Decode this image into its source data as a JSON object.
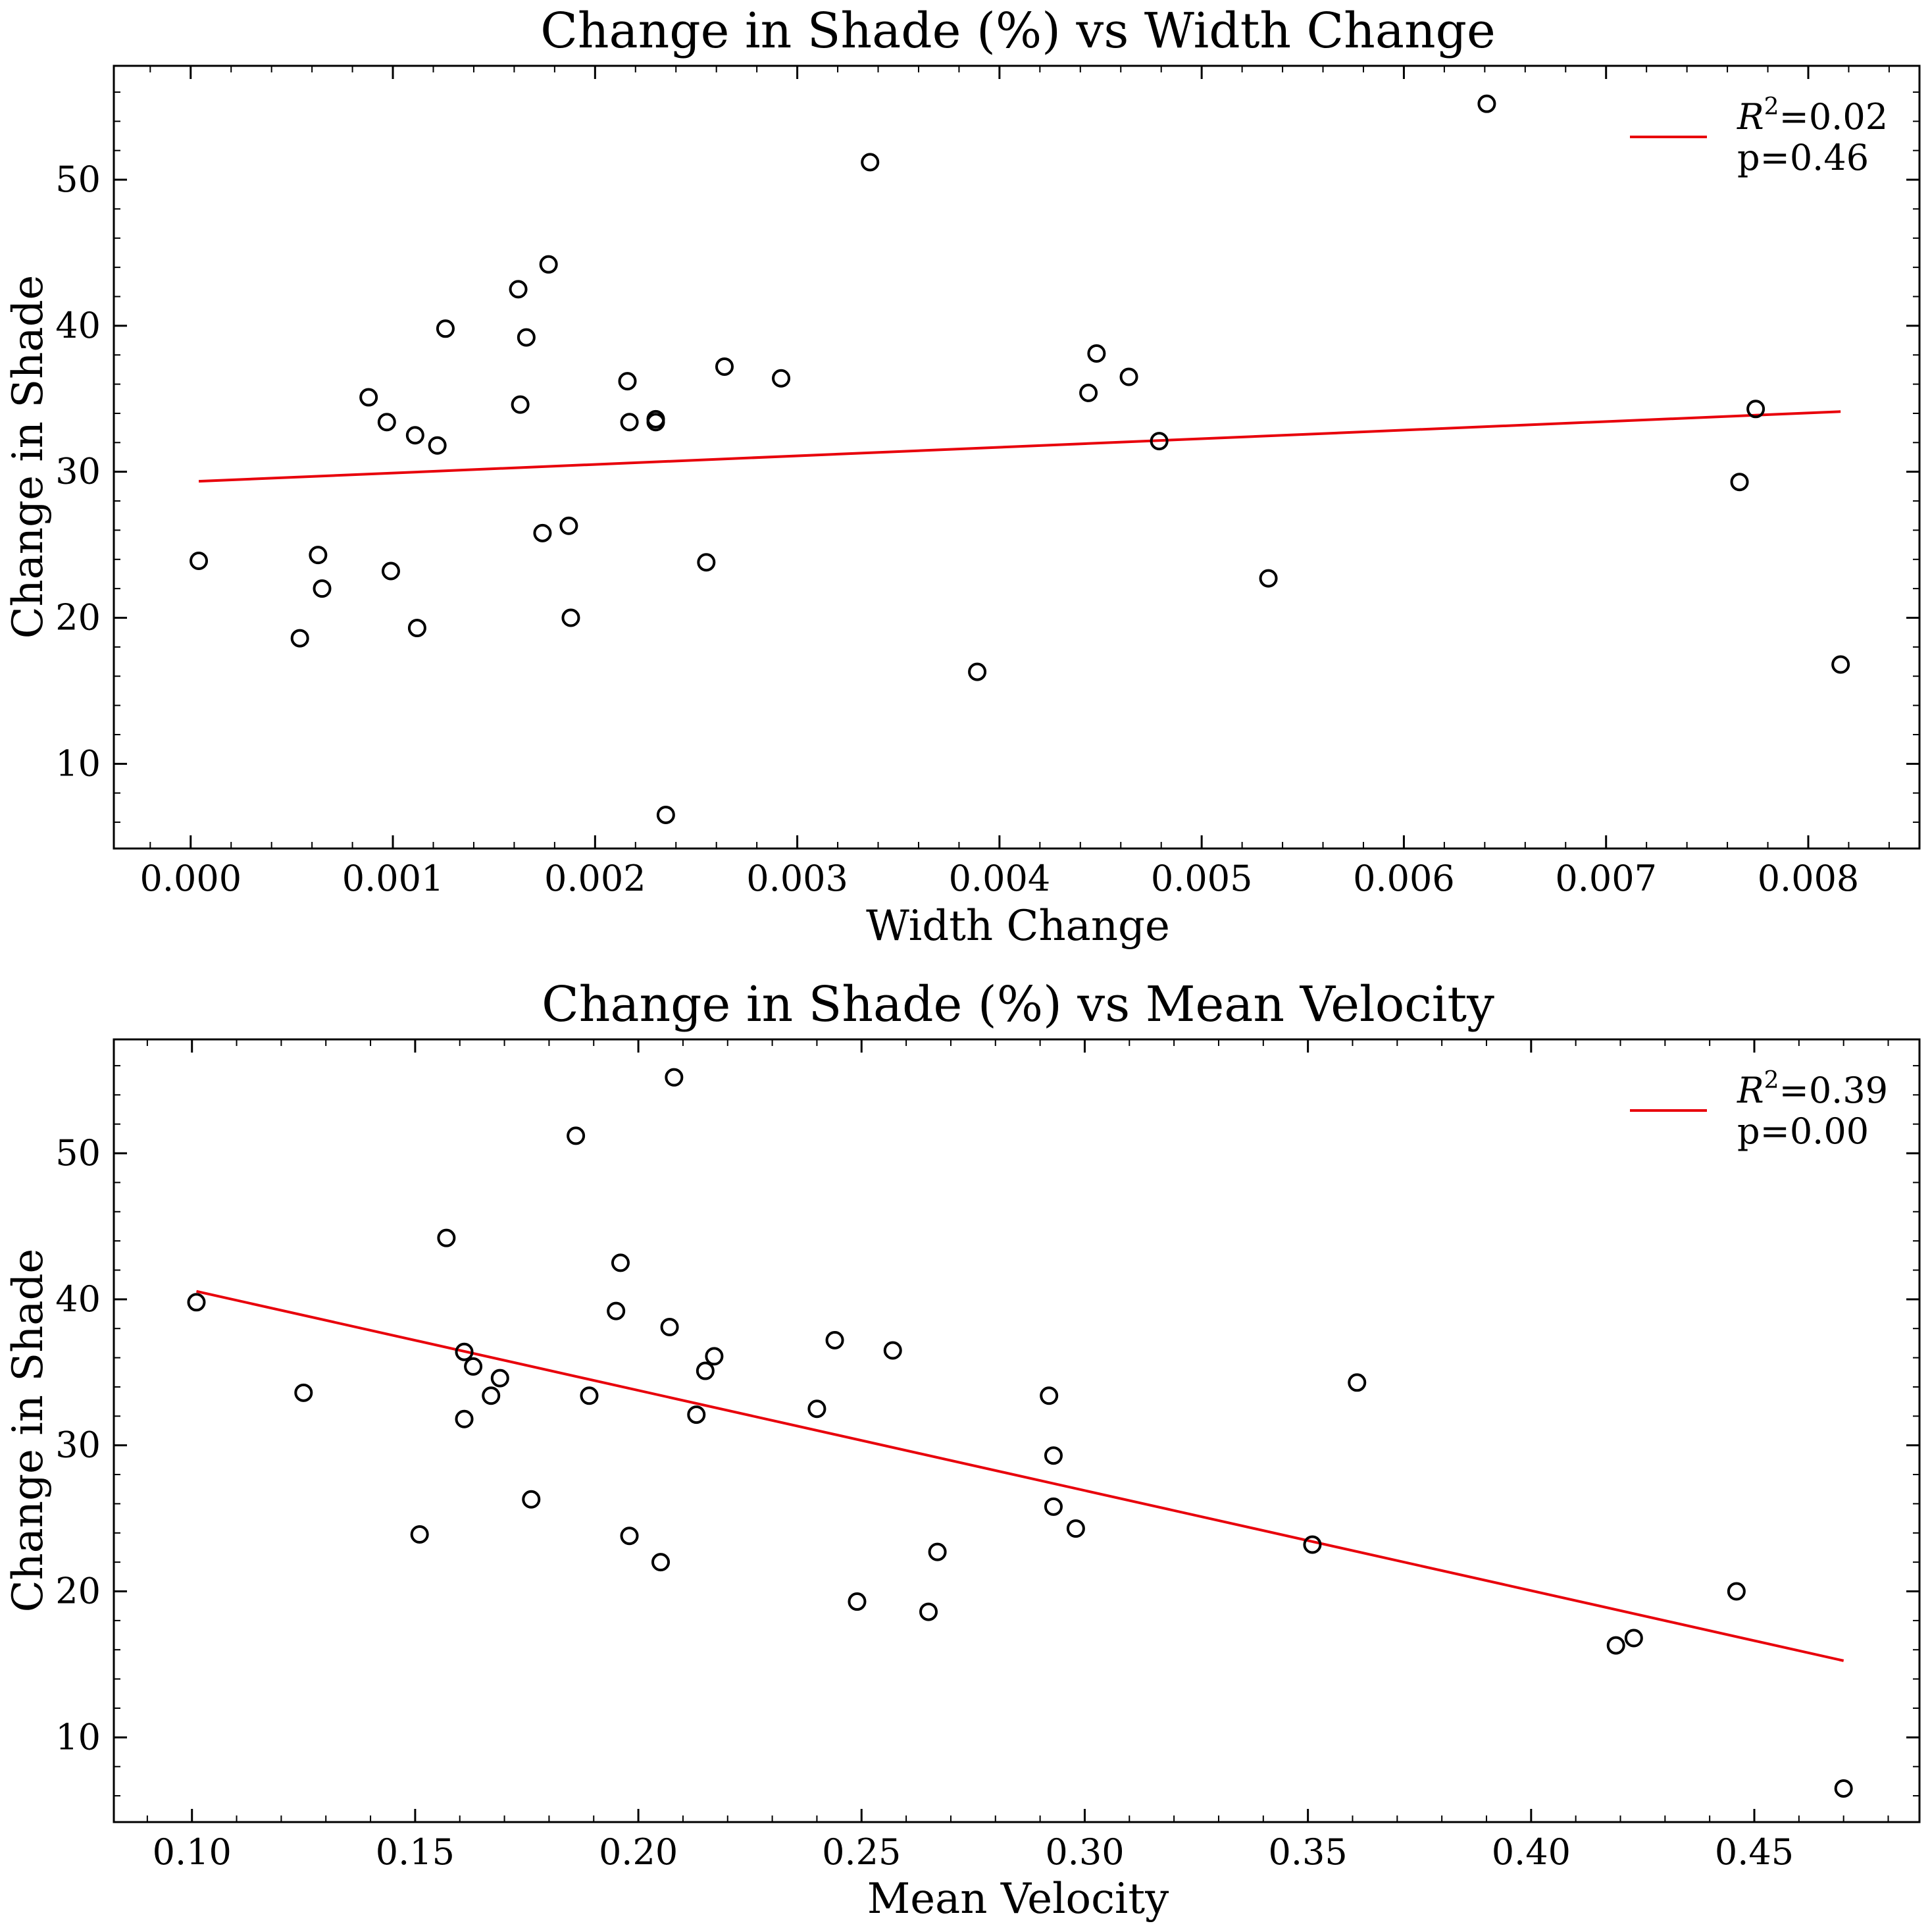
{
  "chart_data": [
    {
      "type": "scatter",
      "title": "Change in Shade (%) vs Width Change",
      "xlabel": "Width Change",
      "ylabel": "Change in Shade",
      "xlim": [
        -0.00038,
        0.00855
      ],
      "ylim": [
        4.2,
        57.8
      ],
      "xticks": [
        0.0,
        0.001,
        0.002,
        0.003,
        0.004,
        0.005,
        0.006,
        0.007,
        0.008
      ],
      "xtick_labels": [
        "0.000",
        "0.001",
        "0.002",
        "0.003",
        "0.004",
        "0.005",
        "0.006",
        "0.007",
        "0.008"
      ],
      "yticks": [
        10,
        20,
        30,
        40,
        50
      ],
      "ytick_labels": [
        "10",
        "20",
        "30",
        "40",
        "50"
      ],
      "grid": false,
      "legend_position": "top-right",
      "legend": {
        "r2_label": "=0.02",
        "p_label": "p=0.46"
      },
      "points": [
        {
          "x": 4e-05,
          "y": 23.9
        },
        {
          "x": 0.00054,
          "y": 18.6
        },
        {
          "x": 0.00063,
          "y": 24.3
        },
        {
          "x": 0.00065,
          "y": 22.0
        },
        {
          "x": 0.00088,
          "y": 35.1
        },
        {
          "x": 0.00097,
          "y": 33.4
        },
        {
          "x": 0.00099,
          "y": 23.2
        },
        {
          "x": 0.00111,
          "y": 32.5
        },
        {
          "x": 0.00112,
          "y": 19.3
        },
        {
          "x": 0.00122,
          "y": 31.8
        },
        {
          "x": 0.00126,
          "y": 39.8
        },
        {
          "x": 0.00162,
          "y": 42.5
        },
        {
          "x": 0.00163,
          "y": 34.6
        },
        {
          "x": 0.00166,
          "y": 39.2
        },
        {
          "x": 0.00174,
          "y": 25.8
        },
        {
          "x": 0.00177,
          "y": 44.2
        },
        {
          "x": 0.00187,
          "y": 26.3
        },
        {
          "x": 0.00188,
          "y": 20.0
        },
        {
          "x": 0.00216,
          "y": 36.2
        },
        {
          "x": 0.00217,
          "y": 33.4
        },
        {
          "x": 0.0023,
          "y": 33.6
        },
        {
          "x": 0.0023,
          "y": 33.4
        },
        {
          "x": 0.00235,
          "y": 6.5
        },
        {
          "x": 0.00255,
          "y": 23.8
        },
        {
          "x": 0.00264,
          "y": 37.2
        },
        {
          "x": 0.00292,
          "y": 36.4
        },
        {
          "x": 0.00336,
          "y": 51.2
        },
        {
          "x": 0.00389,
          "y": 16.3
        },
        {
          "x": 0.00444,
          "y": 35.4
        },
        {
          "x": 0.00448,
          "y": 38.1
        },
        {
          "x": 0.00464,
          "y": 36.5
        },
        {
          "x": 0.00479,
          "y": 32.1
        },
        {
          "x": 0.00533,
          "y": 22.7
        },
        {
          "x": 0.00641,
          "y": 55.2
        },
        {
          "x": 0.00766,
          "y": 29.3
        },
        {
          "x": 0.00774,
          "y": 34.3
        },
        {
          "x": 0.00816,
          "y": 16.8
        }
      ],
      "fit": {
        "x": [
          4e-05,
          0.00816
        ],
        "y": [
          29.35,
          34.12
        ]
      }
    },
    {
      "type": "scatter",
      "title": "Change in Shade (%) vs Mean Velocity",
      "xlabel": "Mean Velocity",
      "ylabel": "Change in Shade",
      "xlim": [
        0.0825,
        0.487
      ],
      "ylim": [
        4.2,
        57.8
      ],
      "xticks": [
        0.1,
        0.15,
        0.2,
        0.25,
        0.3,
        0.35,
        0.4,
        0.45
      ],
      "xtick_labels": [
        "0.10",
        "0.15",
        "0.20",
        "0.25",
        "0.30",
        "0.35",
        "0.40",
        "0.45"
      ],
      "yticks": [
        10,
        20,
        30,
        40,
        50
      ],
      "ytick_labels": [
        "10",
        "20",
        "30",
        "40",
        "50"
      ],
      "grid": false,
      "legend_position": "top-right",
      "legend": {
        "r2_label": "=0.39",
        "p_label": "p=0.00"
      },
      "points": [
        {
          "x": 0.101,
          "y": 39.8
        },
        {
          "x": 0.125,
          "y": 33.6
        },
        {
          "x": 0.151,
          "y": 23.9
        },
        {
          "x": 0.157,
          "y": 44.2
        },
        {
          "x": 0.161,
          "y": 36.4
        },
        {
          "x": 0.161,
          "y": 31.8
        },
        {
          "x": 0.163,
          "y": 35.4
        },
        {
          "x": 0.167,
          "y": 33.4
        },
        {
          "x": 0.169,
          "y": 34.6
        },
        {
          "x": 0.176,
          "y": 26.3
        },
        {
          "x": 0.186,
          "y": 51.2
        },
        {
          "x": 0.189,
          "y": 33.4
        },
        {
          "x": 0.195,
          "y": 39.2
        },
        {
          "x": 0.196,
          "y": 42.5
        },
        {
          "x": 0.198,
          "y": 23.8
        },
        {
          "x": 0.205,
          "y": 22.0
        },
        {
          "x": 0.207,
          "y": 38.1
        },
        {
          "x": 0.208,
          "y": 55.2
        },
        {
          "x": 0.213,
          "y": 32.1
        },
        {
          "x": 0.215,
          "y": 35.1
        },
        {
          "x": 0.217,
          "y": 36.1
        },
        {
          "x": 0.24,
          "y": 32.5
        },
        {
          "x": 0.244,
          "y": 37.2
        },
        {
          "x": 0.249,
          "y": 19.3
        },
        {
          "x": 0.257,
          "y": 36.5
        },
        {
          "x": 0.265,
          "y": 18.6
        },
        {
          "x": 0.267,
          "y": 22.7
        },
        {
          "x": 0.292,
          "y": 33.4
        },
        {
          "x": 0.293,
          "y": 29.3
        },
        {
          "x": 0.293,
          "y": 25.8
        },
        {
          "x": 0.298,
          "y": 24.3
        },
        {
          "x": 0.351,
          "y": 23.2
        },
        {
          "x": 0.361,
          "y": 34.3
        },
        {
          "x": 0.419,
          "y": 16.3
        },
        {
          "x": 0.423,
          "y": 16.8
        },
        {
          "x": 0.446,
          "y": 20.0
        },
        {
          "x": 0.47,
          "y": 6.5
        }
      ],
      "fit": {
        "x": [
          0.101,
          0.47
        ],
        "y": [
          40.55,
          15.25
        ]
      }
    }
  ]
}
